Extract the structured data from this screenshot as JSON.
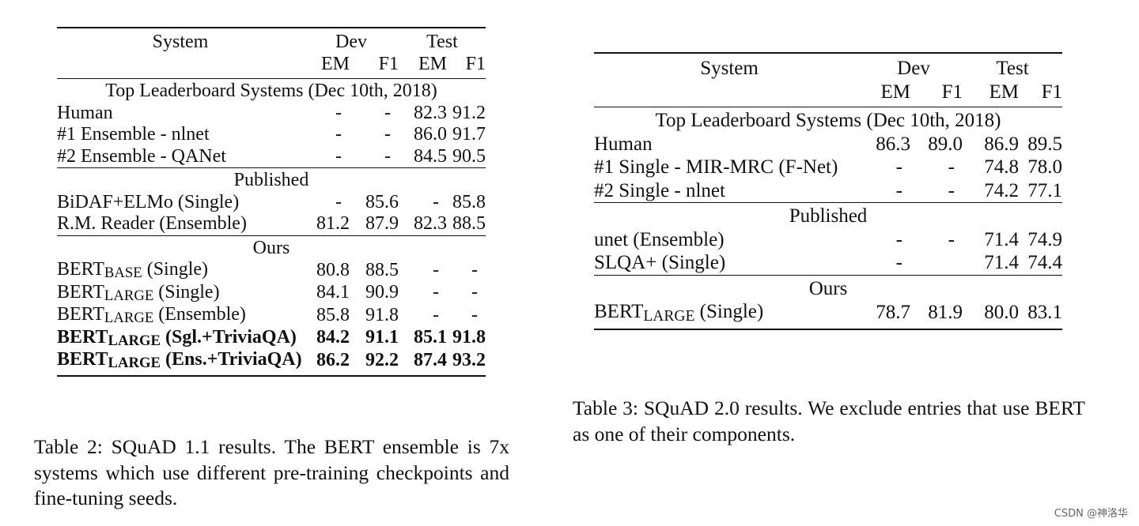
{
  "table2": {
    "header": {
      "system": "System",
      "dev": "Dev",
      "test": "Test",
      "em": "EM",
      "f1": "F1"
    },
    "sections": [
      {
        "title": "Top Leaderboard Systems (Dec 10th, 2018)",
        "rows": [
          {
            "name": "Human",
            "sub": "",
            "suffix": "",
            "dev_em": "-",
            "dev_f1": "-",
            "test_em": "82.3",
            "test_f1": "91.2",
            "bold": false
          },
          {
            "name": "#1 Ensemble - nlnet",
            "sub": "",
            "suffix": "",
            "dev_em": "-",
            "dev_f1": "-",
            "test_em": "86.0",
            "test_f1": "91.7",
            "bold": false
          },
          {
            "name": "#2 Ensemble - QANet",
            "sub": "",
            "suffix": "",
            "dev_em": "-",
            "dev_f1": "-",
            "test_em": "84.5",
            "test_f1": "90.5",
            "bold": false
          }
        ]
      },
      {
        "title": "Published",
        "rows": [
          {
            "name": "BiDAF+ELMo (Single)",
            "sub": "",
            "suffix": "",
            "dev_em": "-",
            "dev_f1": "85.6",
            "test_em": "-",
            "test_f1": "85.8",
            "bold": false
          },
          {
            "name": "R.M. Reader (Ensemble)",
            "sub": "",
            "suffix": "",
            "dev_em": "81.2",
            "dev_f1": "87.9",
            "test_em": "82.3",
            "test_f1": "88.5",
            "bold": false
          }
        ]
      },
      {
        "title": "Ours",
        "rows": [
          {
            "name": "BERT",
            "sub": "BASE",
            "suffix": " (Single)",
            "dev_em": "80.8",
            "dev_f1": "88.5",
            "test_em": "-",
            "test_f1": "-",
            "bold": false
          },
          {
            "name": "BERT",
            "sub": "LARGE",
            "suffix": " (Single)",
            "dev_em": "84.1",
            "dev_f1": "90.9",
            "test_em": "-",
            "test_f1": "-",
            "bold": false
          },
          {
            "name": "BERT",
            "sub": "LARGE",
            "suffix": " (Ensemble)",
            "dev_em": "85.8",
            "dev_f1": "91.8",
            "test_em": "-",
            "test_f1": "-",
            "bold": false
          },
          {
            "name": "BERT",
            "sub": "LARGE",
            "suffix": " (Sgl.+TriviaQA)",
            "dev_em": "84.2",
            "dev_f1": "91.1",
            "test_em": "85.1",
            "test_f1": "91.8",
            "bold": true
          },
          {
            "name": "BERT",
            "sub": "LARGE",
            "suffix": " (Ens.+TriviaQA)",
            "dev_em": "86.2",
            "dev_f1": "92.2",
            "test_em": "87.4",
            "test_f1": "93.2",
            "bold": true
          }
        ]
      }
    ],
    "caption": "Table 2:  SQuAD 1.1 results.  The BERT ensemble is 7x systems which use different pre-training checkpoints and fine-tuning seeds."
  },
  "table3": {
    "header": {
      "system": "System",
      "dev": "Dev",
      "test": "Test",
      "em": "EM",
      "f1": "F1"
    },
    "sections": [
      {
        "title": "Top Leaderboard Systems (Dec 10th, 2018)",
        "rows": [
          {
            "name": "Human",
            "sub": "",
            "suffix": "",
            "dev_em": "86.3",
            "dev_f1": "89.0",
            "test_em": "86.9",
            "test_f1": "89.5",
            "bold": false
          },
          {
            "name": "#1 Single - MIR-MRC (F-Net)",
            "sub": "",
            "suffix": "",
            "dev_em": "-",
            "dev_f1": "-",
            "test_em": "74.8",
            "test_f1": "78.0",
            "bold": false
          },
          {
            "name": "#2 Single - nlnet",
            "sub": "",
            "suffix": "",
            "dev_em": "-",
            "dev_f1": "-",
            "test_em": "74.2",
            "test_f1": "77.1",
            "bold": false
          }
        ]
      },
      {
        "title": "Published",
        "rows": [
          {
            "name": "unet (Ensemble)",
            "sub": "",
            "suffix": "",
            "dev_em": "-",
            "dev_f1": "-",
            "test_em": "71.4",
            "test_f1": "74.9",
            "bold": false
          },
          {
            "name": "SLQA+ (Single)",
            "sub": "",
            "suffix": "",
            "dev_em": "-",
            "dev_f1": "",
            "test_em": "71.4",
            "test_f1": "74.4",
            "bold": false
          }
        ]
      },
      {
        "title": "Ours",
        "rows": [
          {
            "name": "BERT",
            "sub": "LARGE",
            "suffix": " (Single)",
            "dev_em": "78.7",
            "dev_f1": "81.9",
            "test_em": "80.0",
            "test_f1": "83.1",
            "bold": false
          }
        ]
      }
    ],
    "caption": "Table 3:  SQuAD 2.0 results.  We exclude entries that use BERT as one of their components."
  },
  "watermark": "CSDN @神洛华"
}
